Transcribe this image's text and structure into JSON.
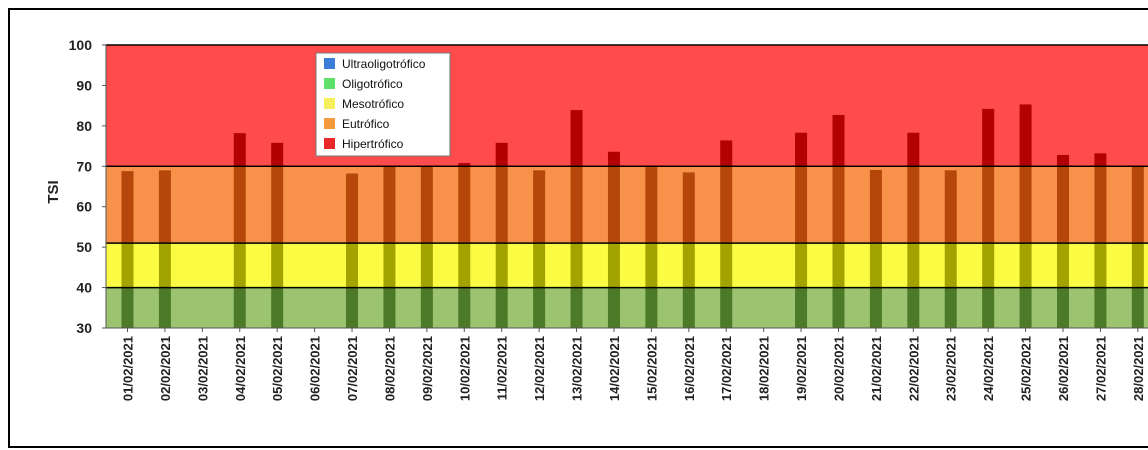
{
  "chart_data": {
    "type": "bar",
    "title": "",
    "xlabel": "",
    "ylabel": "TSI",
    "ylim": [
      30,
      100
    ],
    "yticks": [
      30,
      40,
      50,
      60,
      70,
      80,
      90,
      100
    ],
    "legend_position": "top-left",
    "bands": [
      {
        "name": "Ultraoligotrófico",
        "color": "#3b7dd8",
        "from": null,
        "to": null
      },
      {
        "name": "Oligotrófico",
        "color": "#5ee06a",
        "from": null,
        "to": null
      },
      {
        "name": "Mesotrófico",
        "color": "#f4ef5a",
        "from": null,
        "to": null
      },
      {
        "name": "Eutrófico",
        "color": "#f39a3c",
        "from": null,
        "to": null
      },
      {
        "name": "Hipertrófico",
        "color": "#e8282a",
        "from": null,
        "to": null
      }
    ],
    "band_fills": [
      {
        "from": 30,
        "to": 40,
        "color": "#9cc36f"
      },
      {
        "from": 40,
        "to": 51,
        "color": "#fbfb44"
      },
      {
        "from": 51,
        "to": 70,
        "color": "#f8924a"
      },
      {
        "from": 70,
        "to": 100,
        "color": "#ff4b4b"
      }
    ],
    "categories": [
      "01/02/2021",
      "02/02/2021",
      "03/02/2021",
      "04/02/2021",
      "05/02/2021",
      "06/02/2021",
      "07/02/2021",
      "08/02/2021",
      "09/02/2021",
      "10/02/2021",
      "11/02/2021",
      "12/02/2021",
      "13/02/2021",
      "14/02/2021",
      "15/02/2021",
      "16/02/2021",
      "17/02/2021",
      "18/02/2021",
      "19/02/2021",
      "20/02/2021",
      "21/02/2021",
      "22/02/2021",
      "23/02/2021",
      "24/02/2021",
      "25/02/2021",
      "26/02/2021",
      "27/02/2021",
      "28/02/2021"
    ],
    "series": [
      {
        "values": [
          68.8,
          69.0,
          null,
          78.2,
          75.8,
          null,
          68.2,
          69.9,
          69.9,
          70.8,
          75.8,
          69.0,
          83.9,
          73.6,
          69.8,
          68.5,
          76.4,
          null,
          78.3,
          82.7,
          69.1,
          78.3,
          69.0,
          84.2,
          85.3,
          72.8,
          73.2,
          70.2
        ]
      }
    ],
    "bar_colors": {
      "Hipertrófico": "#b30000",
      "Eutrófico": "#b6470b",
      "Mesotrófico": "#a3a300",
      "Oligotrófico": "#4d7a28"
    }
  }
}
